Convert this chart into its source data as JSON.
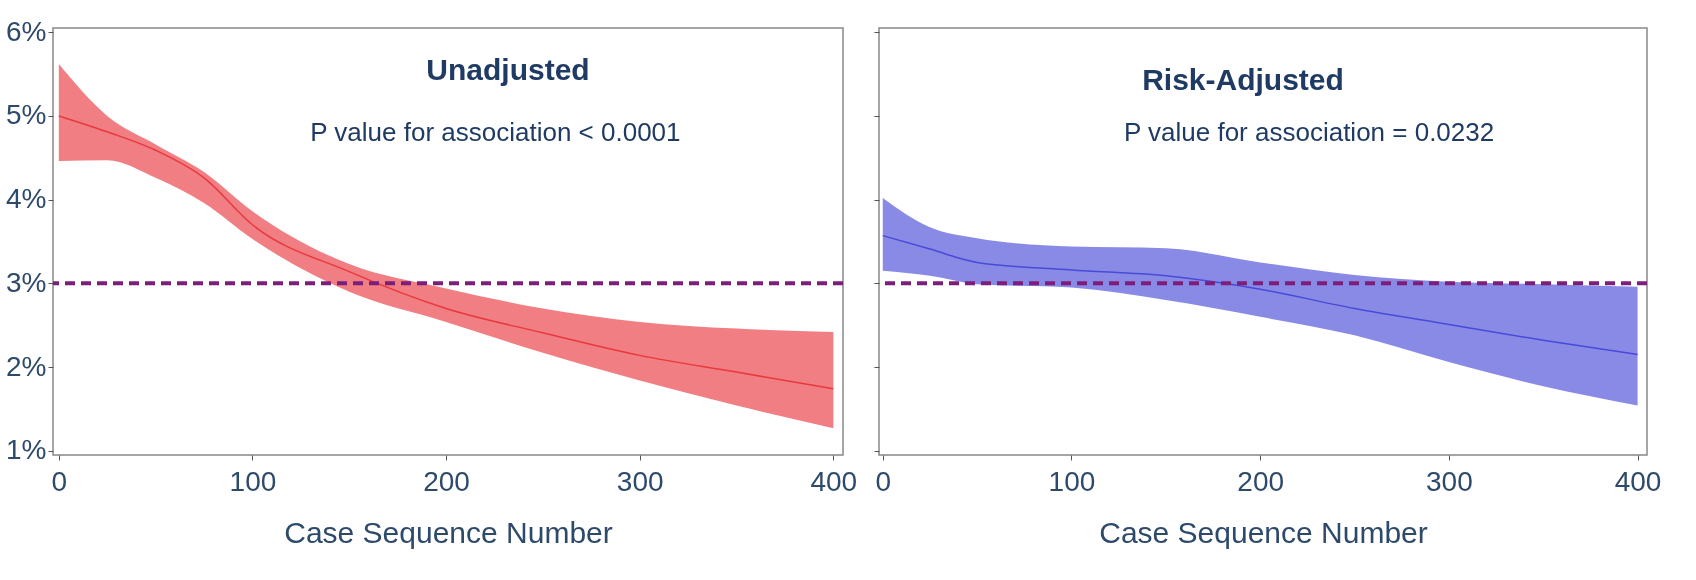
{
  "chart_data": [
    {
      "type": "line",
      "title": "Unadjusted",
      "xlabel": "Case Sequence Number",
      "annotations": [
        "P value for association < 0.0001"
      ],
      "x": [
        0,
        25,
        50,
        75,
        100,
        150,
        200,
        250,
        300,
        350,
        400
      ],
      "series": [
        {
          "color": "#e8393f",
          "values": [
            5.0,
            4.81,
            4.59,
            4.26,
            3.7,
            3.14,
            2.7,
            2.41,
            2.14,
            1.94,
            1.74
          ],
          "lower": [
            4.46,
            4.47,
            4.26,
            3.96,
            3.53,
            2.9,
            2.54,
            2.17,
            1.84,
            1.54,
            1.27
          ],
          "upper": [
            5.62,
            5.0,
            4.66,
            4.33,
            3.86,
            3.23,
            2.94,
            2.7,
            2.54,
            2.46,
            2.42
          ]
        }
      ],
      "xlim": [
        -3,
        405
      ],
      "ylim": [
        0.95,
        6.05
      ],
      "xticks": [
        0,
        100,
        200,
        300,
        400
      ],
      "yticks": [
        {
          "value": 1,
          "label": "1%"
        },
        {
          "value": 2,
          "label": "2%"
        },
        {
          "value": 3,
          "label": "3%"
        },
        {
          "value": 4,
          "label": "4%"
        },
        {
          "value": 5,
          "label": "5%"
        },
        {
          "value": 6,
          "label": "6%"
        }
      ],
      "ref_lines": [
        {
          "axis": "y",
          "value": 3,
          "color": "#7b1f7b",
          "line_style": "dashed"
        }
      ],
      "grid": false
    },
    {
      "type": "line",
      "title": "Risk-Adjusted",
      "xlabel": "Case Sequence Number",
      "annotations": [
        "P value for association = 0.0232"
      ],
      "x": [
        0,
        25,
        50,
        100,
        150,
        200,
        250,
        300,
        350,
        400
      ],
      "series": [
        {
          "color": "#4a4ad8",
          "values": [
            3.57,
            3.41,
            3.25,
            3.16,
            3.09,
            2.93,
            2.7,
            2.51,
            2.32,
            2.15
          ],
          "lower": [
            3.15,
            3.09,
            2.99,
            2.95,
            2.8,
            2.6,
            2.38,
            2.06,
            1.77,
            1.54
          ],
          "upper": [
            4.02,
            3.67,
            3.54,
            3.44,
            3.42,
            3.25,
            3.1,
            3.02,
            2.99,
            2.96
          ]
        }
      ],
      "xlim": [
        -2,
        405
      ],
      "ylim": [
        0.95,
        6.05
      ],
      "xticks": [
        0,
        100,
        200,
        300,
        400
      ],
      "yticks": [
        1,
        2,
        3,
        4,
        5,
        6
      ],
      "ref_lines": [
        {
          "axis": "y",
          "value": 3,
          "color": "#7b1f7b",
          "line_style": "dashed"
        }
      ],
      "grid": false,
      "tick_labels": "x"
    }
  ]
}
